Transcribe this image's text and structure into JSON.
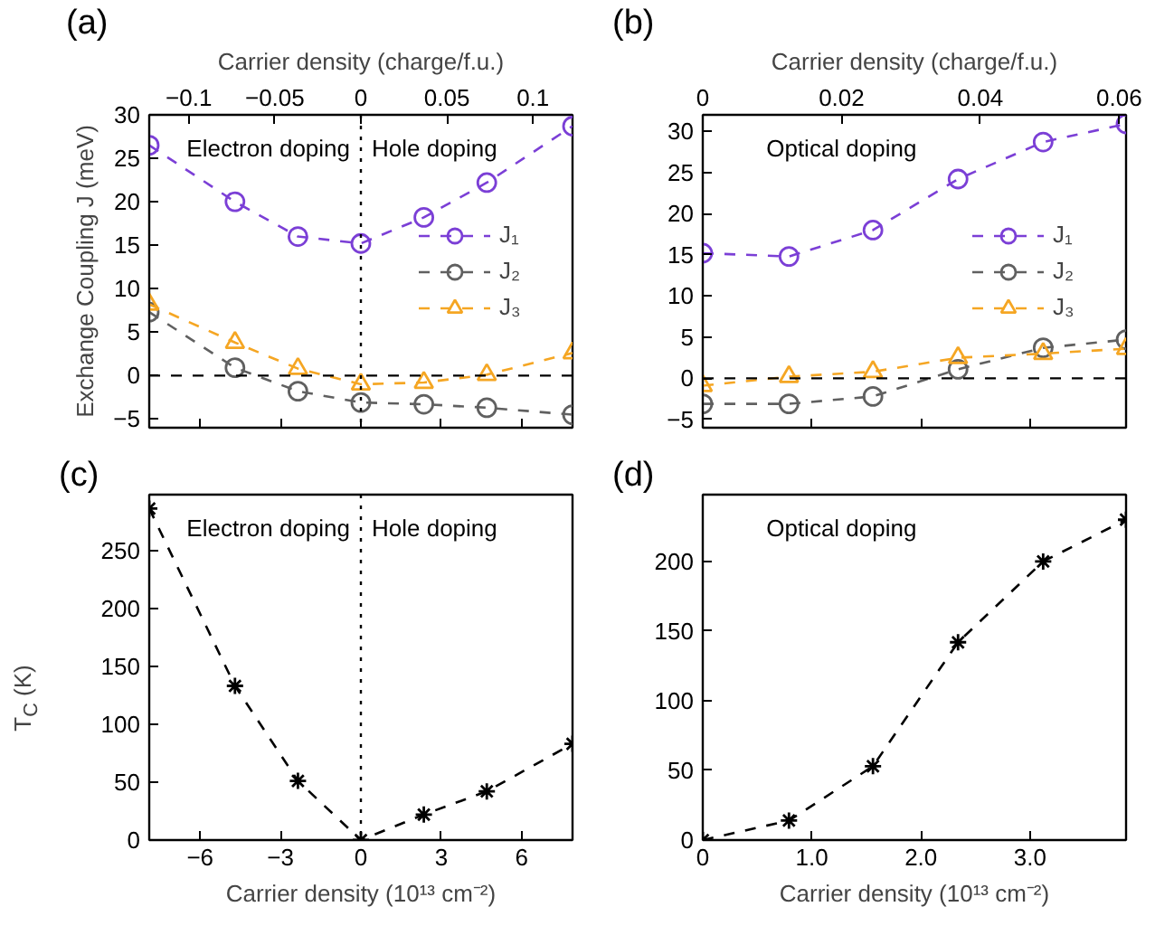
{
  "chart_data": [
    {
      "type": "line",
      "ylabel": "Exchange Coupling J (meV)",
      "x2label": "Carrier density (charge/f.u.)",
      "annotations": [
        "(a)",
        "Electron doping",
        "Hole doping"
      ],
      "x": [
        -7.9,
        -4.7,
        -2.35,
        0,
        2.35,
        4.7,
        7.9
      ],
      "xlim": [
        -7.9,
        7.9
      ],
      "xticks": [
        -6,
        -3,
        0,
        3,
        6
      ],
      "x2lim": [
        -0.123,
        0.123
      ],
      "x2ticks": [
        -0.1,
        -0.05,
        0,
        0.05,
        0.1
      ],
      "ylim": [
        -6,
        30
      ],
      "yticks": [
        -5,
        0,
        5,
        10,
        15,
        20,
        25,
        30
      ],
      "tick_labels": "y",
      "legend": "right",
      "line_style": "dashed",
      "ref_lines": [
        {
          "axis": "y",
          "value": 0,
          "color": "#000000",
          "line_style": "dashed"
        },
        {
          "axis": "x",
          "value": 0,
          "color": "#000000",
          "line_style": "dotted"
        }
      ],
      "series": [
        {
          "name": "J₁",
          "color": "#7b3fd6",
          "marker": "circle",
          "values": [
            26.5,
            20,
            16,
            15.2,
            18.2,
            22.2,
            28.7
          ]
        },
        {
          "name": "J₂",
          "color": "#606060",
          "marker": "circle",
          "values": [
            7.3,
            0.9,
            -1.8,
            -3.1,
            -3.3,
            -3.7,
            -4.5
          ]
        },
        {
          "name": "J₃",
          "color": "#f5a623",
          "marker": "triangle",
          "values": [
            8.2,
            3.8,
            0.8,
            -1.0,
            -0.8,
            0.1,
            2.6
          ]
        }
      ]
    },
    {
      "type": "line",
      "x2label": "Carrier density (charge/f.u.)",
      "annotations": [
        "(b)",
        "Optical doping"
      ],
      "x": [
        0,
        0.79,
        1.56,
        2.34,
        3.12,
        3.88
      ],
      "xlim": [
        0,
        3.88
      ],
      "xticks": [
        0,
        1,
        2,
        3
      ],
      "x2lim": [
        0,
        0.061
      ],
      "x2ticks": [
        0,
        0.02,
        0.04,
        0.06
      ],
      "ylim": [
        -6,
        32
      ],
      "yticks": [
        -5,
        0,
        5,
        10,
        15,
        20,
        25,
        30
      ],
      "tick_labels": "y",
      "legend": "right",
      "line_style": "dashed",
      "ref_lines": [
        {
          "axis": "y",
          "value": 0,
          "color": "#000000",
          "line_style": "dashed"
        }
      ],
      "series": [
        {
          "name": "J₁",
          "color": "#7b3fd6",
          "marker": "circle",
          "values": [
            15.2,
            14.8,
            18.0,
            24.2,
            28.7,
            30.9
          ]
        },
        {
          "name": "J₂",
          "color": "#606060",
          "marker": "circle",
          "values": [
            -3.1,
            -3.1,
            -2.2,
            1.1,
            3.7,
            4.7
          ]
        },
        {
          "name": "J₃",
          "color": "#f5a623",
          "marker": "triangle",
          "values": [
            -0.9,
            0.2,
            0.8,
            2.5,
            3.0,
            3.6
          ]
        }
      ]
    },
    {
      "type": "line",
      "ylabel": "T$_{C}$ (K)",
      "xlabel": "Carrier density (10¹³ cm⁻²)",
      "annotations": [
        "(c)",
        "Electron doping",
        "Hole doping"
      ],
      "x": [
        -7.9,
        -4.7,
        -2.35,
        0,
        2.35,
        4.7,
        7.9
      ],
      "xlim": [
        -7.9,
        7.9
      ],
      "xticks": [
        -6,
        -3,
        0,
        3,
        6
      ],
      "ylim": [
        0,
        298
      ],
      "yticks": [
        0,
        50,
        100,
        150,
        200,
        250
      ],
      "line_style": "dashed",
      "ref_lines": [
        {
          "axis": "x",
          "value": 0,
          "color": "#000000",
          "line_style": "dotted"
        }
      ],
      "series": [
        {
          "color": "#000000",
          "marker": "cross",
          "values": [
            286,
            133,
            51,
            0,
            22,
            42,
            83
          ]
        }
      ]
    },
    {
      "type": "line",
      "xlabel": "Carrier density (10¹³ cm⁻²)",
      "annotations": [
        "(d)",
        "Optical doping"
      ],
      "x": [
        0,
        0.79,
        1.56,
        2.34,
        3.12,
        3.88
      ],
      "xlim": [
        0,
        3.88
      ],
      "xticks": [
        0,
        {
          "value": 1,
          "label": "1.0"
        },
        {
          "value": 2,
          "label": "2.0"
        },
        {
          "value": 3,
          "label": "3.0"
        }
      ],
      "ylim": [
        0,
        248
      ],
      "yticks": [
        0,
        50,
        100,
        150,
        200
      ],
      "line_style": "dashed",
      "series": [
        {
          "color": "#000000",
          "marker": "cross",
          "values": [
            0,
            14,
            53,
            142,
            200,
            230
          ]
        }
      ]
    }
  ]
}
